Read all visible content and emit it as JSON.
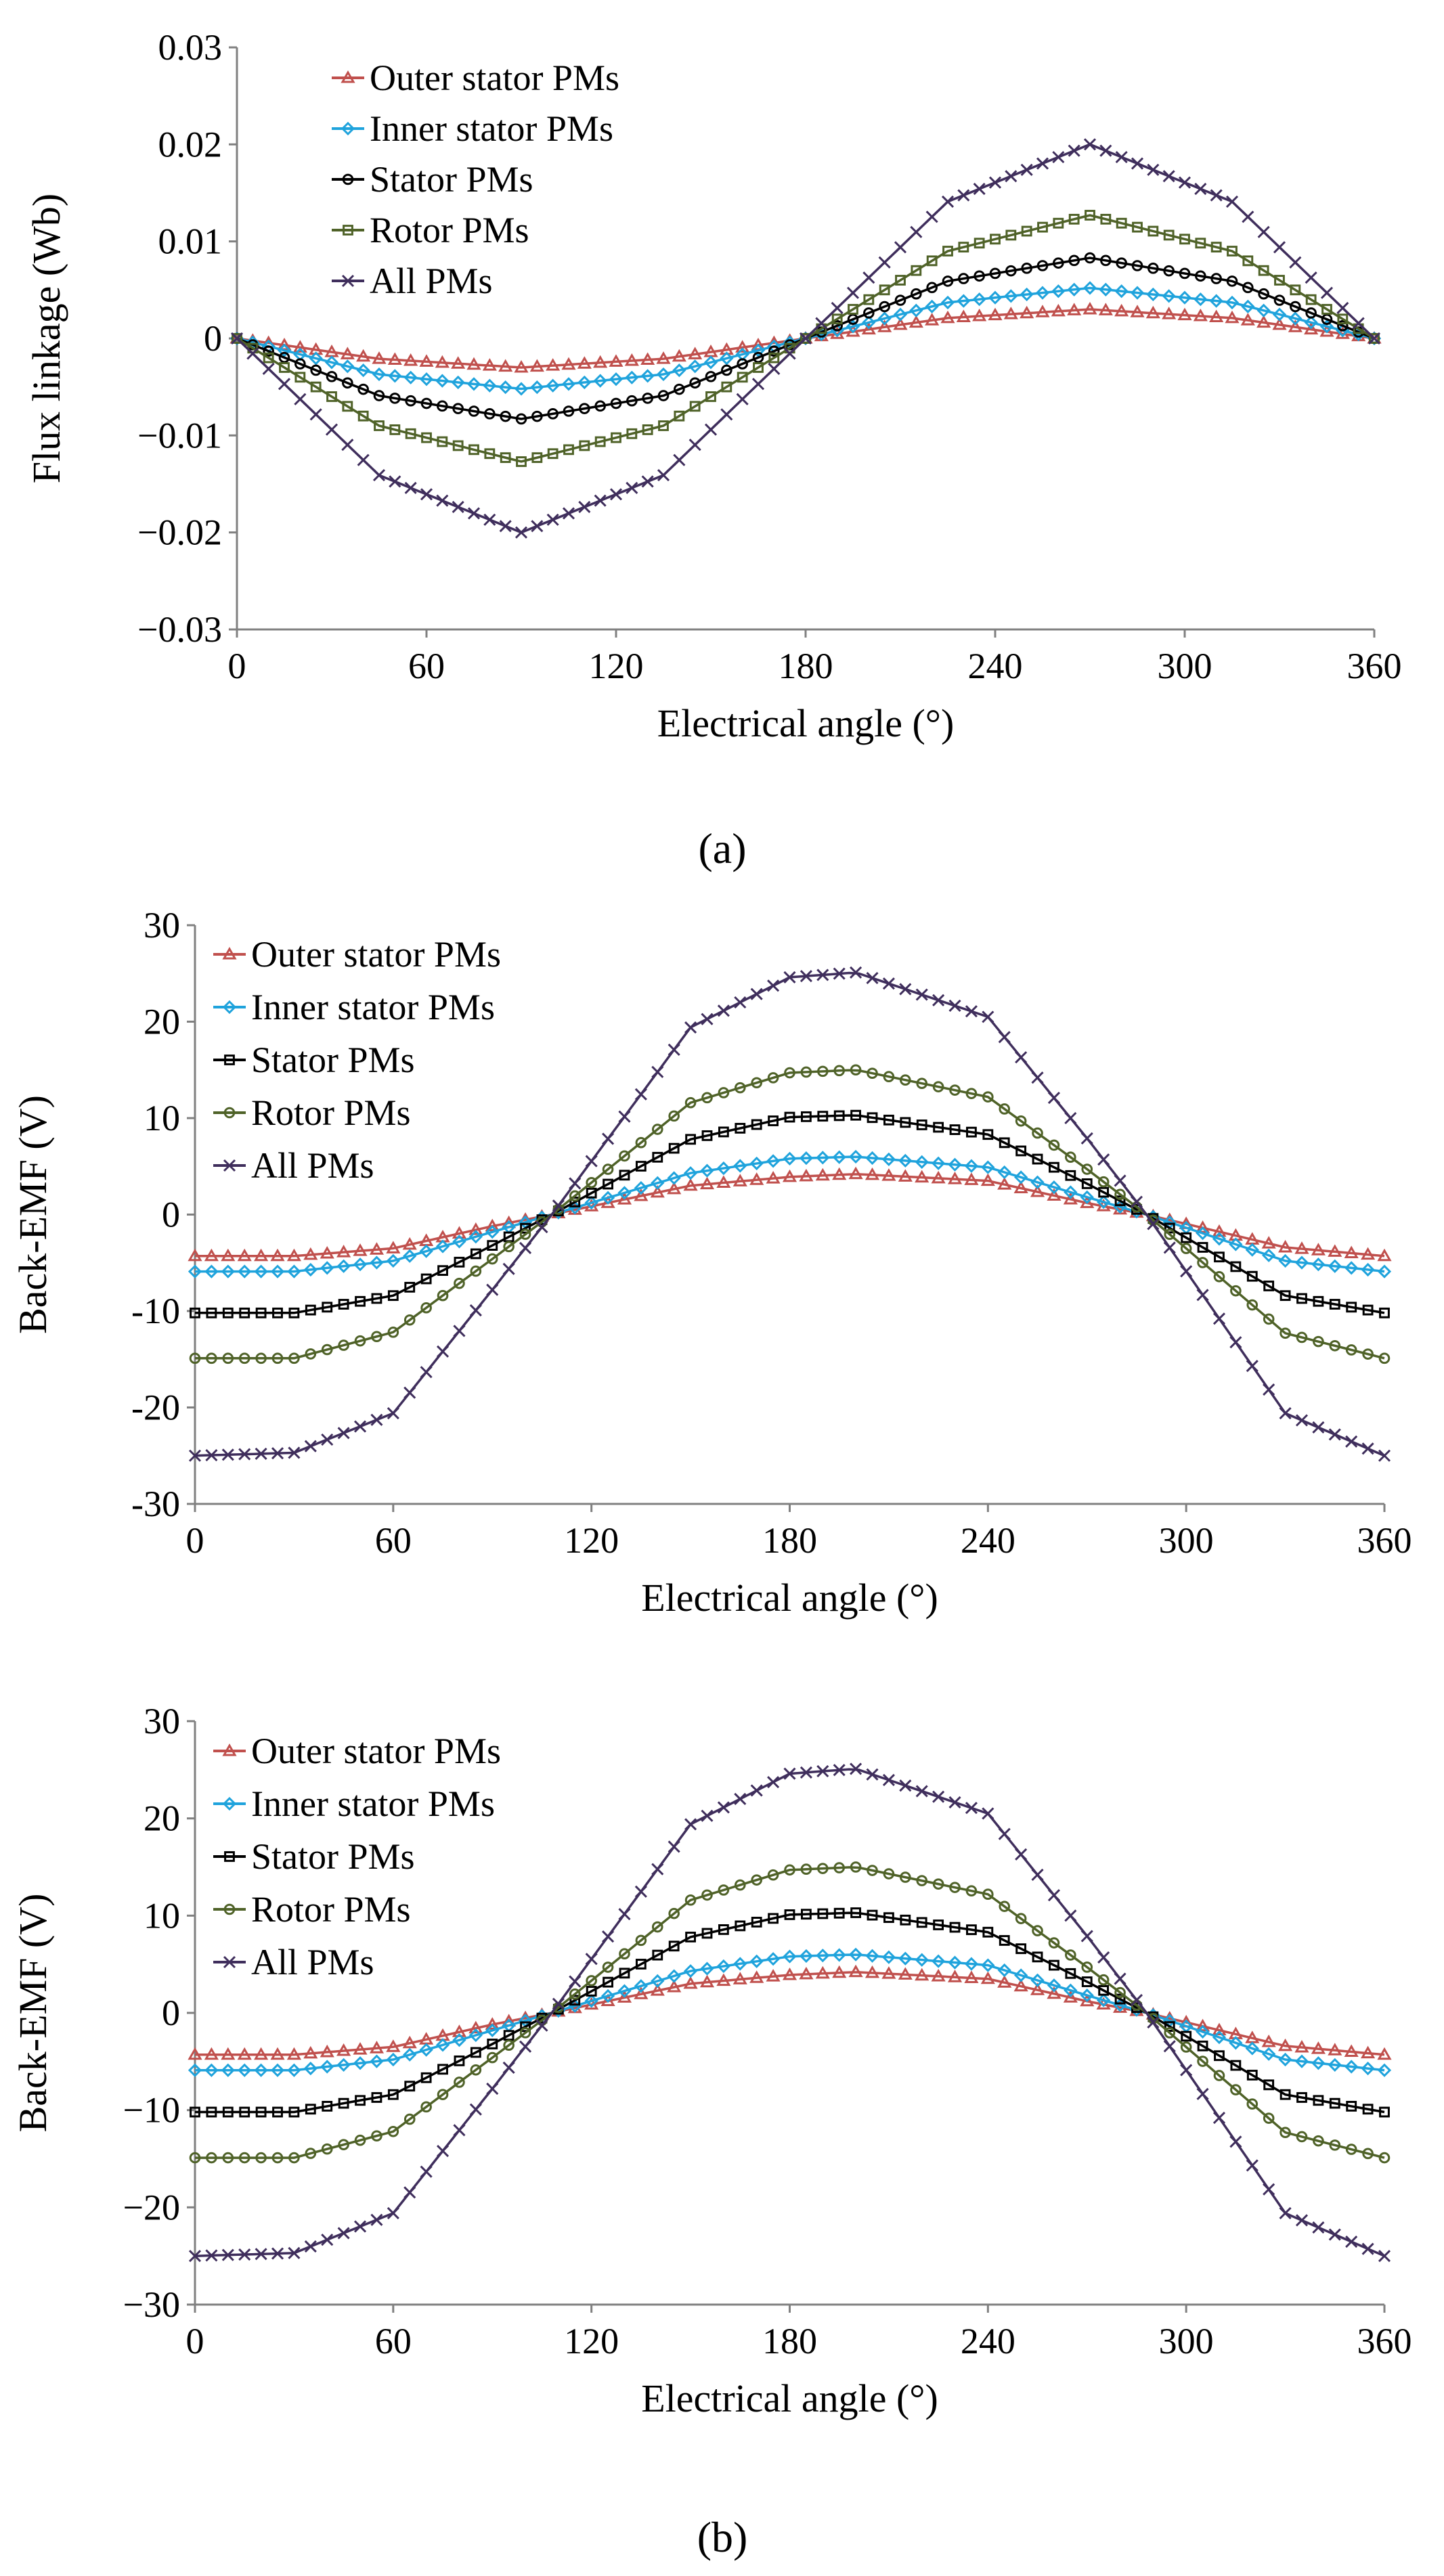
{
  "chart_data": [
    {
      "type": "line",
      "xlabel": "Electrical angle (°)",
      "ylabel": "Flux linkage (Wb)",
      "xlim": [
        0,
        360
      ],
      "ylim": [
        -0.03,
        0.03
      ],
      "xticks": [
        "0",
        "60",
        "120",
        "180",
        "240",
        "300",
        "360"
      ],
      "yticks": [
        "0.03",
        "0.02",
        "0.01",
        "0",
        "−0.01",
        "−0.02",
        "−0.03"
      ],
      "grid": false,
      "legend_position": "top-left",
      "series": [
        {
          "name": "Outer stator PMs",
          "marker": "triangle",
          "color": "#C0504D",
          "x": [
            0,
            45,
            90,
            135,
            180,
            225,
            270,
            315,
            360
          ],
          "values": [
            0,
            -0.0021,
            -0.003,
            -0.0021,
            0,
            0.0021,
            0.003,
            0.0021,
            0
          ]
        },
        {
          "name": "Inner stator PMs",
          "marker": "diamond",
          "color": "#1FA3DC",
          "x": [
            0,
            45,
            90,
            135,
            180,
            225,
            270,
            315,
            360
          ],
          "values": [
            0,
            -0.0037,
            -0.0052,
            -0.0037,
            0,
            0.0037,
            0.0052,
            0.0037,
            0
          ]
        },
        {
          "name": "Stator PMs",
          "marker": "circle",
          "color": "#000000",
          "x": [
            0,
            45,
            90,
            135,
            180,
            225,
            270,
            315,
            360
          ],
          "values": [
            0,
            -0.0059,
            -0.0083,
            -0.0059,
            0,
            0.0059,
            0.0083,
            0.0059,
            0
          ]
        },
        {
          "name": "Rotor PMs",
          "marker": "square",
          "color": "#4F6228",
          "x": [
            0,
            45,
            90,
            135,
            180,
            225,
            270,
            315,
            360
          ],
          "values": [
            0,
            -0.009,
            -0.0127,
            -0.009,
            0,
            0.009,
            0.0127,
            0.009,
            0
          ]
        },
        {
          "name": "All PMs",
          "marker": "cross",
          "color": "#3F2E5C",
          "x": [
            0,
            45,
            90,
            135,
            180,
            225,
            270,
            315,
            360
          ],
          "values": [
            0,
            -0.0141,
            -0.02,
            -0.0141,
            0,
            0.0141,
            0.02,
            0.0141,
            0
          ]
        }
      ]
    },
    {
      "type": "line",
      "xlabel": "Electrical angle (°)",
      "ylabel": "Back-EMF (V)",
      "xlim": [
        0,
        360
      ],
      "ylim": [
        -30,
        30
      ],
      "xticks": [
        "0",
        "60",
        "120",
        "180",
        "240",
        "300",
        "360"
      ],
      "yticks": [
        "30",
        "20",
        "10",
        "0",
        "-10",
        "-20",
        "-30"
      ],
      "grid": false,
      "legend_position": "top-left",
      "series": [
        {
          "name": "Outer stator PMs",
          "marker": "triangle",
          "color": "#C0504D",
          "x": [
            0,
            30,
            60,
            90,
            108,
            150,
            180,
            200,
            240,
            270,
            288,
            330,
            360
          ],
          "values": [
            -4.3,
            -4.3,
            -3.5,
            -1.2,
            0,
            3.0,
            3.9,
            4.2,
            3.5,
            1.2,
            0,
            -3.4,
            -4.3
          ]
        },
        {
          "name": "Inner stator PMs",
          "marker": "diamond",
          "color": "#1FA3DC",
          "x": [
            0,
            30,
            60,
            90,
            108,
            150,
            180,
            200,
            240,
            270,
            288,
            330,
            360
          ],
          "values": [
            -5.9,
            -5.9,
            -4.8,
            -1.8,
            0,
            4.3,
            5.8,
            6.0,
            4.9,
            1.8,
            0,
            -4.8,
            -5.9
          ]
        },
        {
          "name": "Stator PMs",
          "marker": "square",
          "color": "#000000",
          "x": [
            0,
            30,
            60,
            90,
            108,
            150,
            180,
            200,
            240,
            270,
            288,
            330,
            360
          ],
          "values": [
            -10.2,
            -10.2,
            -8.4,
            -3.2,
            0,
            7.8,
            10.1,
            10.3,
            8.3,
            3.2,
            0,
            -8.4,
            -10.2
          ]
        },
        {
          "name": "Rotor PMs",
          "marker": "circle",
          "color": "#4F6228",
          "x": [
            0,
            30,
            60,
            90,
            108,
            150,
            180,
            200,
            240,
            270,
            288,
            330,
            360
          ],
          "values": [
            -14.9,
            -14.9,
            -12.2,
            -4.6,
            0,
            11.6,
            14.7,
            15.0,
            12.2,
            4.7,
            0,
            -12.3,
            -14.9
          ]
        },
        {
          "name": "All PMs",
          "marker": "cross",
          "color": "#3F2E5C",
          "x": [
            0,
            30,
            60,
            90,
            108,
            150,
            180,
            200,
            240,
            270,
            288,
            330,
            360
          ],
          "values": [
            -25,
            -24.7,
            -20.6,
            -7.8,
            0,
            19.4,
            24.6,
            25.1,
            20.5,
            7.9,
            0,
            -20.6,
            -25
          ]
        }
      ]
    },
    {
      "type": "line",
      "xlabel": "Electrical angle (°)",
      "ylabel": "Back-EMF (V)",
      "xlim": [
        0,
        360
      ],
      "ylim": [
        -30,
        30
      ],
      "xticks": [
        "0",
        "60",
        "120",
        "180",
        "240",
        "300",
        "360"
      ],
      "yticks": [
        "30",
        "20",
        "10",
        "0",
        "−10",
        "−20",
        "−30"
      ],
      "grid": false,
      "legend_position": "top-left",
      "series": [
        {
          "name": "Outer stator PMs",
          "marker": "triangle",
          "color": "#C0504D",
          "x": [
            0,
            30,
            60,
            90,
            108,
            150,
            180,
            200,
            240,
            270,
            288,
            330,
            360
          ],
          "values": [
            -4.3,
            -4.3,
            -3.5,
            -1.2,
            0,
            3.0,
            3.9,
            4.2,
            3.5,
            1.2,
            0,
            -3.4,
            -4.3
          ]
        },
        {
          "name": "Inner stator PMs",
          "marker": "diamond",
          "color": "#1FA3DC",
          "x": [
            0,
            30,
            60,
            90,
            108,
            150,
            180,
            200,
            240,
            270,
            288,
            330,
            360
          ],
          "values": [
            -5.9,
            -5.9,
            -4.8,
            -1.8,
            0,
            4.3,
            5.8,
            6.0,
            4.9,
            1.8,
            0,
            -4.8,
            -5.9
          ]
        },
        {
          "name": "Stator PMs",
          "marker": "square",
          "color": "#000000",
          "x": [
            0,
            30,
            60,
            90,
            108,
            150,
            180,
            200,
            240,
            270,
            288,
            330,
            360
          ],
          "values": [
            -10.2,
            -10.2,
            -8.4,
            -3.2,
            0,
            7.8,
            10.1,
            10.3,
            8.3,
            3.2,
            0,
            -8.4,
            -10.2
          ]
        },
        {
          "name": "Rotor PMs",
          "marker": "circle",
          "color": "#4F6228",
          "x": [
            0,
            30,
            60,
            90,
            108,
            150,
            180,
            200,
            240,
            270,
            288,
            330,
            360
          ],
          "values": [
            -14.9,
            -14.9,
            -12.2,
            -4.6,
            0,
            11.6,
            14.7,
            15.0,
            12.2,
            4.7,
            0,
            -12.3,
            -14.9
          ]
        },
        {
          "name": "All PMs",
          "marker": "cross",
          "color": "#3F2E5C",
          "x": [
            0,
            30,
            60,
            90,
            108,
            150,
            180,
            200,
            240,
            270,
            288,
            330,
            360
          ],
          "values": [
            -25,
            -24.7,
            -20.6,
            -7.8,
            0,
            19.4,
            24.6,
            25.1,
            20.5,
            7.9,
            0,
            -20.6,
            -25
          ]
        }
      ]
    }
  ],
  "captions": {
    "a": "(a)",
    "b": "(b)"
  }
}
